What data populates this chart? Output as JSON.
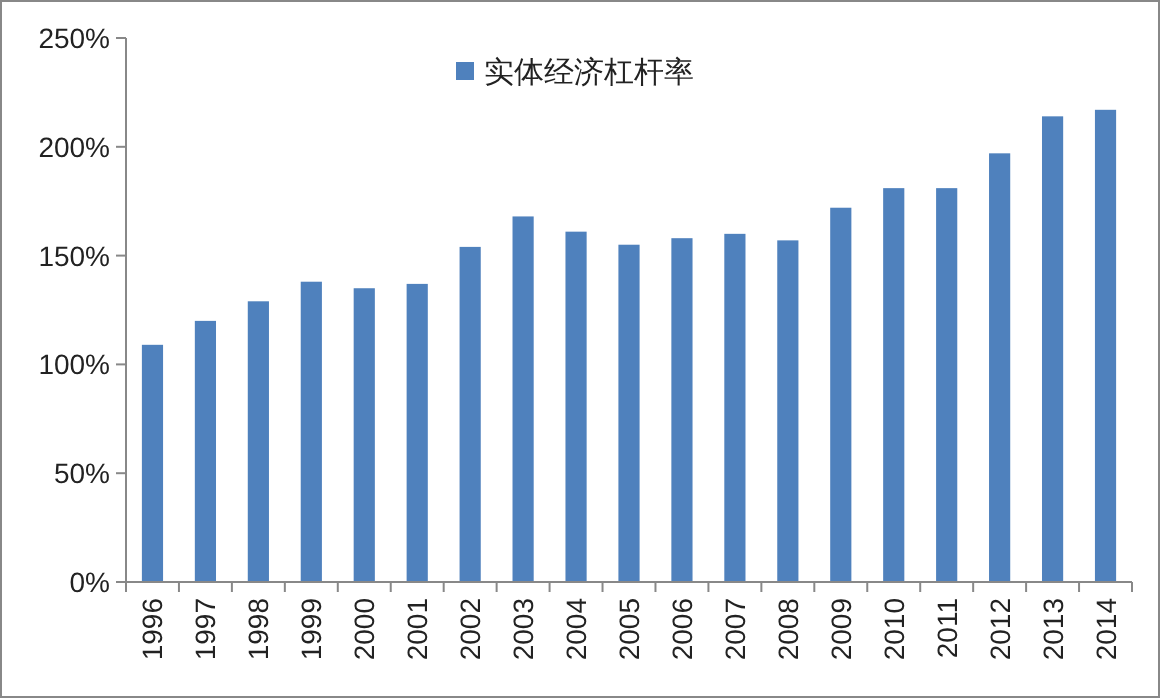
{
  "chart_data": {
    "type": "bar",
    "categories": [
      "1996",
      "1997",
      "1998",
      "1999",
      "2000",
      "2001",
      "2002",
      "2003",
      "2004",
      "2005",
      "2006",
      "2007",
      "2008",
      "2009",
      "2010",
      "2011",
      "2012",
      "2013",
      "2014"
    ],
    "series": [
      {
        "name": "实体经济杠杆率",
        "color": "#4f81bd",
        "values": [
          109,
          120,
          129,
          138,
          135,
          137,
          154,
          168,
          161,
          155,
          158,
          160,
          157,
          172,
          181,
          181,
          197,
          214,
          217
        ]
      }
    ],
    "ylim": [
      0,
      250
    ],
    "yticks": [
      {
        "value": 0,
        "label": "0%"
      },
      {
        "value": 50,
        "label": "50%"
      },
      {
        "value": 100,
        "label": "100%"
      },
      {
        "value": 150,
        "label": "150%"
      },
      {
        "value": 200,
        "label": "200%"
      },
      {
        "value": 250,
        "label": "250%"
      }
    ],
    "grid": false,
    "legend": "top"
  }
}
